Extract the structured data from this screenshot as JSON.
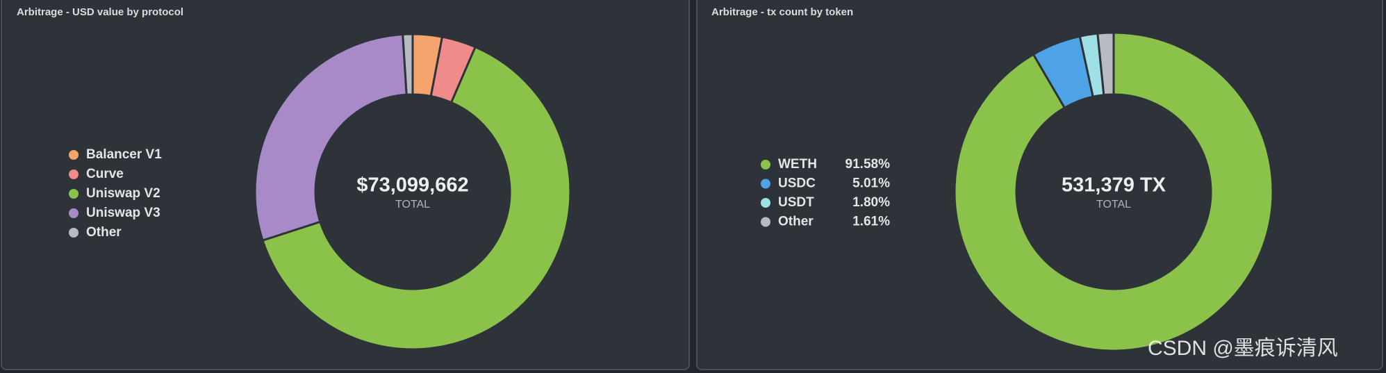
{
  "chart_data": [
    {
      "type": "donut",
      "title": "Arbitrage - USD value by protocol",
      "center_label": "$73,099,662",
      "center_sublabel": "TOTAL",
      "categories": [
        "Balancer V1",
        "Curve",
        "Uniswap V2",
        "Uniswap V3",
        "Other"
      ],
      "values": [
        3,
        3.5,
        63.5,
        29,
        1
      ],
      "colors": [
        "#f4a46c",
        "#f08b8b",
        "#8bc34a",
        "#a98ac9",
        "#b8bcc2"
      ]
    },
    {
      "type": "donut",
      "title": "Arbitrage - tx count by token",
      "center_label": "531,379 TX",
      "center_sublabel": "TOTAL",
      "categories": [
        "WETH",
        "USDC",
        "USDT",
        "Other"
      ],
      "values": [
        91.58,
        5.01,
        1.8,
        1.61
      ],
      "value_labels": [
        "91.58%",
        "5.01%",
        "1.80%",
        "1.61%"
      ],
      "colors": [
        "#8bc34a",
        "#4ea3e6",
        "#9fdfe6",
        "#b8bcc2"
      ]
    }
  ],
  "watermark": "CSDN @墨痕诉清风"
}
